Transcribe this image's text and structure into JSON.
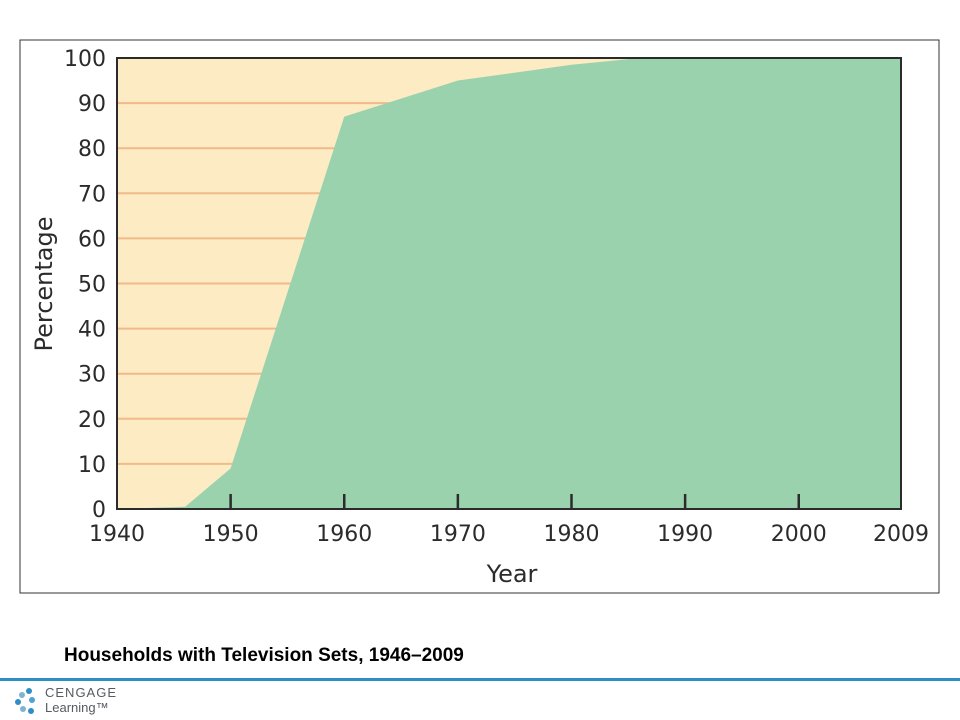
{
  "chart_data": {
    "type": "area",
    "title": "",
    "xlabel": "Year",
    "ylabel": "Percentage",
    "x_ticks": [
      "1940",
      "1950",
      "1960",
      "1970",
      "1980",
      "1990",
      "2000",
      "2009"
    ],
    "y_ticks": [
      "0",
      "10",
      "20",
      "30",
      "40",
      "50",
      "60",
      "70",
      "80",
      "90",
      "100"
    ],
    "xlim": [
      1940,
      2009
    ],
    "ylim": [
      0,
      100
    ],
    "grid": true,
    "series": [
      {
        "x": [
          1940,
          1946,
          1950,
          1960,
          1970,
          1980,
          1986,
          1990,
          2000,
          2009
        ],
        "values": [
          0,
          0.5,
          9,
          87,
          95,
          98.5,
          100,
          100,
          100,
          100
        ],
        "color": "#9bd2ae"
      }
    ],
    "background_color": "#fdebc3",
    "grid_color": "#f2b98a"
  },
  "caption": "Households with Television Sets, 1946–2009",
  "footer": {
    "brand_line1": "CENGAGE",
    "brand_line2": "Learning™",
    "rule_color": "#2e8fc4"
  }
}
